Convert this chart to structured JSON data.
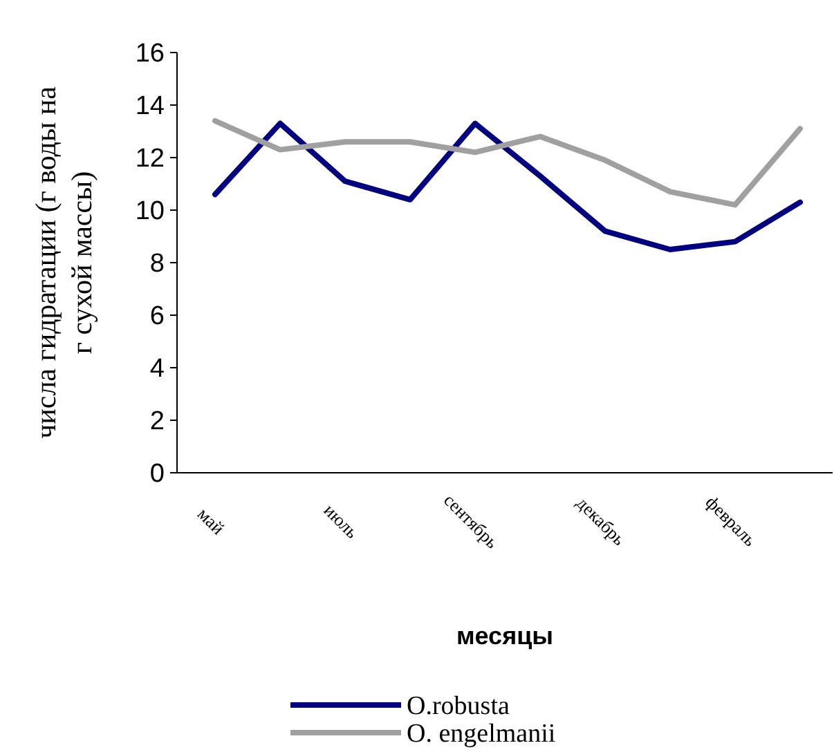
{
  "chart_data": {
    "type": "line",
    "xlabel": "месяцы",
    "ylabel": "числа гидратации (г воды на г сухой массы)",
    "categories": [
      "май",
      null,
      "июль",
      null,
      "сентябрь",
      null,
      "декабрь",
      null,
      "февраль",
      null
    ],
    "series": [
      {
        "name": "O.robusta",
        "color": "#000080",
        "values": [
          10.6,
          13.3,
          11.1,
          10.4,
          13.3,
          11.3,
          9.2,
          8.5,
          8.8,
          10.3
        ]
      },
      {
        "name": "O. engelmanii",
        "color": "#a0a0a0",
        "values": [
          13.4,
          12.3,
          12.6,
          12.6,
          12.2,
          12.8,
          11.9,
          10.7,
          10.2,
          13.1
        ]
      }
    ],
    "ylim": [
      0,
      16
    ],
    "yticks": [
      0,
      2,
      4,
      6,
      8,
      10,
      12,
      14,
      16
    ],
    "legend": "bottom",
    "grid": false,
    "marker": "none",
    "line_style": "solid"
  }
}
